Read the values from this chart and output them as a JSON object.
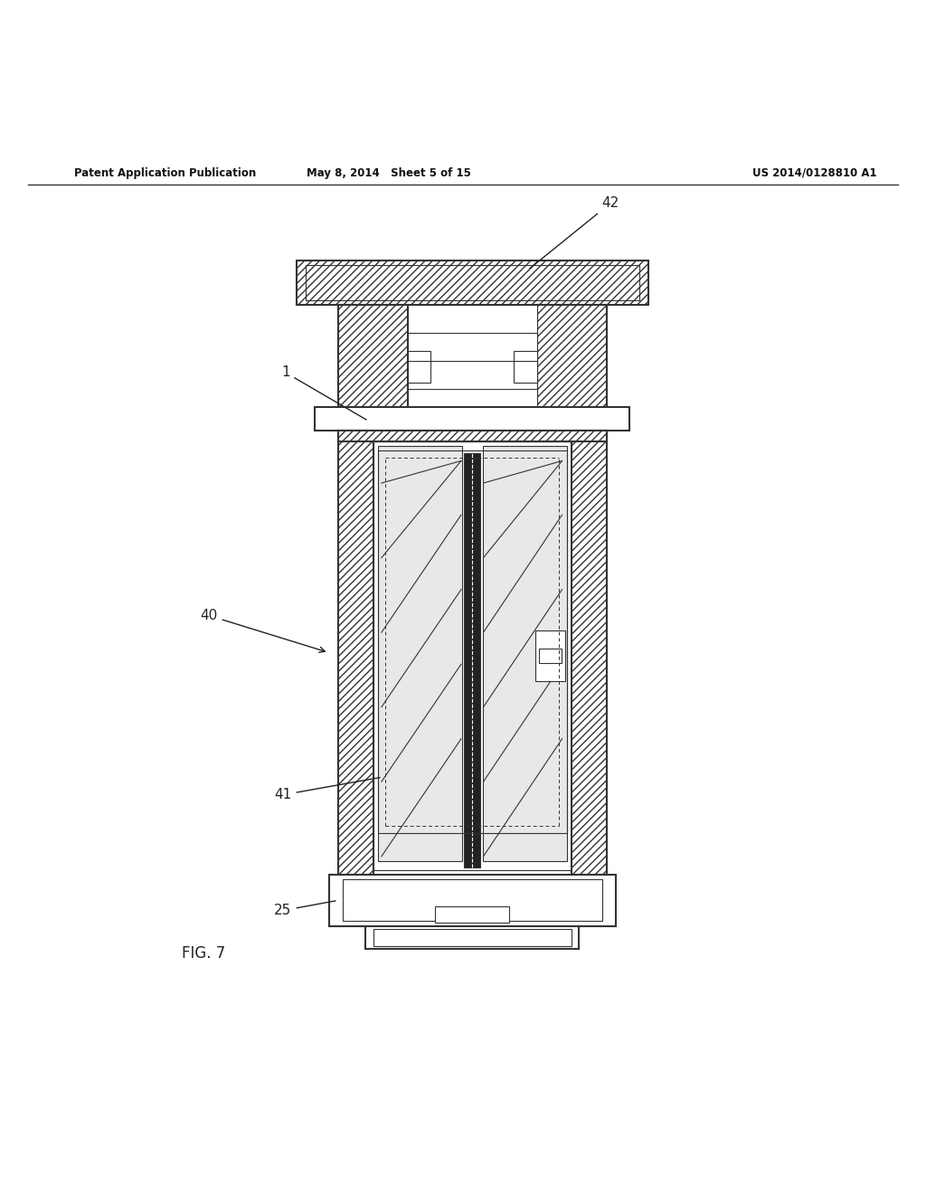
{
  "background_color": "#ffffff",
  "header_left": "Patent Application Publication",
  "header_mid": "May 8, 2014   Sheet 5 of 15",
  "header_right": "US 2014/0128810 A1",
  "fig_label": "FIG. 7",
  "line_color": "#333333",
  "dark_color": "#111111"
}
